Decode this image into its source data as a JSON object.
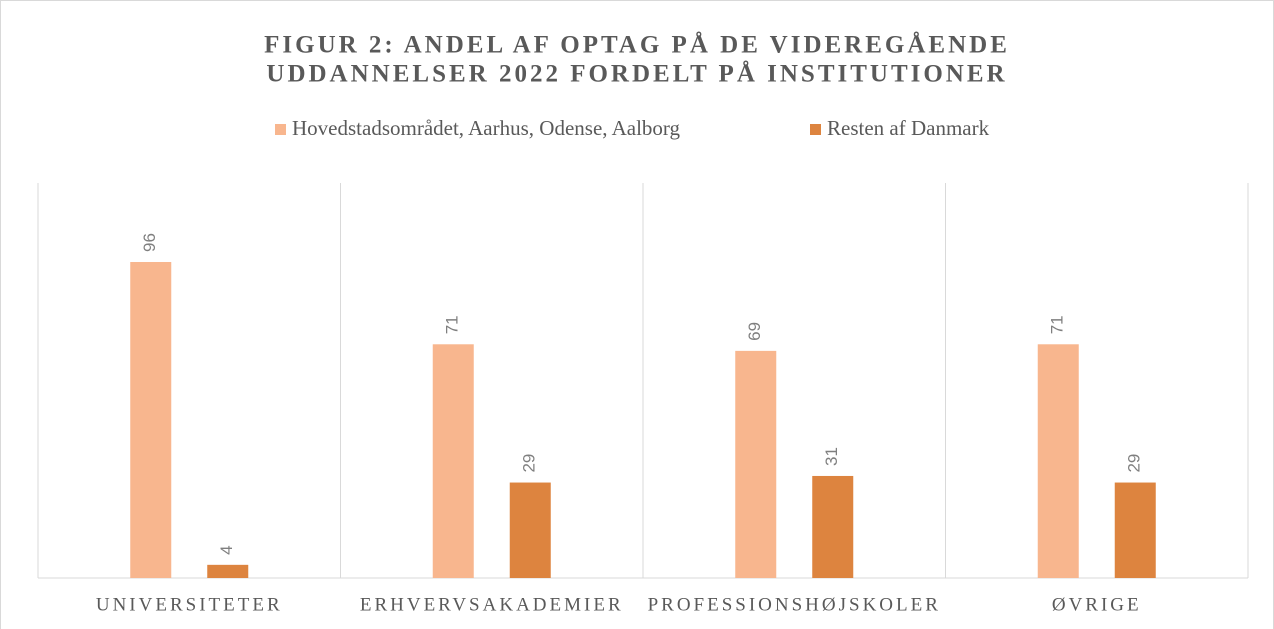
{
  "chart_data": {
    "type": "bar",
    "title": [
      "FIGUR 2: ANDEL AF OPTAG PÅ DE VIDEREGÅENDE",
      "UDDANNELSER 2022 FORDELT PÅ INSTITUTIONER"
    ],
    "categories": [
      "UNIVERSITETER",
      "ERHVERVSAKADEMIER",
      "PROFESSIONSHØJSKOLER",
      "ØVRIGE"
    ],
    "series": [
      {
        "name": "Hovedstadsområdet, Aarhus, Odense, Aalborg",
        "color": "#f8b68e",
        "values": [
          96,
          71,
          69,
          71
        ]
      },
      {
        "name": "Resten af Danmark",
        "color": "#dd843f",
        "values": [
          4,
          29,
          31,
          29
        ]
      }
    ],
    "ylim": [
      0,
      120
    ]
  }
}
